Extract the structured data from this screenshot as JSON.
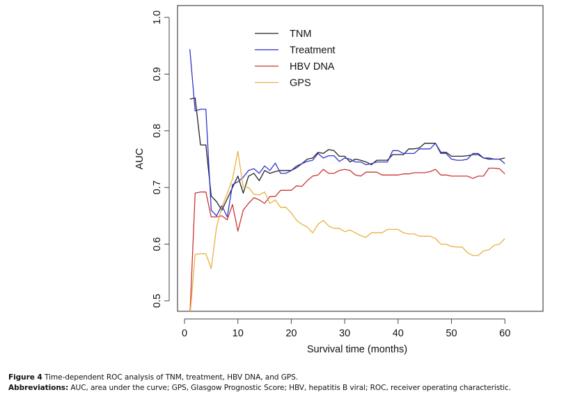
{
  "chart_data": {
    "type": "line",
    "title": "",
    "xlabel": "Survival time (months)",
    "ylabel": "AUC",
    "xlim": [
      -1.5,
      62.5
    ],
    "ylim": [
      0.478,
      1.02
    ],
    "xticks": [
      0,
      10,
      20,
      30,
      40,
      50,
      60
    ],
    "xtick_labels": [
      "0",
      "10",
      "20",
      "30",
      "40",
      "50",
      "60"
    ],
    "yticks": [
      0.5,
      0.6,
      0.7,
      0.8,
      0.9,
      1.0
    ],
    "ytick_labels": [
      "0.5",
      "0.6",
      "0.7",
      "0.8",
      "0.9",
      "1.0"
    ],
    "grid": false,
    "legend_position": "top-left",
    "x": [
      1,
      2,
      3,
      4,
      5,
      6,
      7,
      8,
      9,
      10,
      11,
      12,
      13,
      14,
      15,
      16,
      17,
      18,
      19,
      20,
      21,
      22,
      23,
      24,
      25,
      26,
      27,
      28,
      29,
      30,
      31,
      32,
      33,
      34,
      35,
      36,
      37,
      38,
      39,
      40,
      41,
      42,
      43,
      44,
      45,
      46,
      47,
      48,
      49,
      50,
      51,
      52,
      53,
      54,
      55,
      56,
      57,
      58,
      59,
      60
    ],
    "series": [
      {
        "name": "TNM",
        "color": "#222222",
        "values": [
          0.856,
          0.858,
          0.775,
          0.775,
          0.685,
          0.675,
          0.66,
          0.68,
          0.7,
          0.72,
          0.69,
          0.72,
          0.725,
          0.712,
          0.73,
          0.725,
          0.728,
          0.73,
          0.73,
          0.73,
          0.735,
          0.742,
          0.75,
          0.752,
          0.762,
          0.76,
          0.767,
          0.765,
          0.755,
          0.755,
          0.745,
          0.75,
          0.748,
          0.745,
          0.74,
          0.748,
          0.748,
          0.748,
          0.758,
          0.758,
          0.758,
          0.768,
          0.768,
          0.77,
          0.778,
          0.778,
          0.778,
          0.762,
          0.762,
          0.755,
          0.755,
          0.755,
          0.756,
          0.758,
          0.758,
          0.752,
          0.75,
          0.75,
          0.75,
          0.752
        ]
      },
      {
        "name": "Treatment",
        "color": "#3333cc",
        "values": [
          0.944,
          0.835,
          0.838,
          0.838,
          0.66,
          0.65,
          0.668,
          0.648,
          0.705,
          0.71,
          0.718,
          0.73,
          0.733,
          0.725,
          0.738,
          0.73,
          0.743,
          0.725,
          0.725,
          0.73,
          0.738,
          0.742,
          0.746,
          0.748,
          0.76,
          0.752,
          0.756,
          0.756,
          0.746,
          0.752,
          0.75,
          0.745,
          0.745,
          0.74,
          0.742,
          0.745,
          0.745,
          0.745,
          0.765,
          0.765,
          0.76,
          0.76,
          0.76,
          0.768,
          0.768,
          0.768,
          0.778,
          0.76,
          0.76,
          0.75,
          0.748,
          0.748,
          0.75,
          0.76,
          0.76,
          0.752,
          0.752,
          0.75,
          0.75,
          0.742
        ]
      },
      {
        "name": "HBV DNA",
        "color": "#cc3333",
        "values": [
          0.47,
          0.69,
          0.692,
          0.692,
          0.648,
          0.648,
          0.65,
          0.643,
          0.67,
          0.623,
          0.66,
          0.672,
          0.682,
          0.678,
          0.672,
          0.684,
          0.684,
          0.695,
          0.695,
          0.695,
          0.703,
          0.702,
          0.712,
          0.72,
          0.722,
          0.732,
          0.725,
          0.725,
          0.73,
          0.732,
          0.73,
          0.722,
          0.72,
          0.727,
          0.727,
          0.727,
          0.722,
          0.722,
          0.722,
          0.722,
          0.724,
          0.724,
          0.726,
          0.726,
          0.726,
          0.728,
          0.732,
          0.722,
          0.722,
          0.72,
          0.72,
          0.72,
          0.72,
          0.716,
          0.72,
          0.72,
          0.734,
          0.734,
          0.733,
          0.724
        ]
      },
      {
        "name": "GPS",
        "color": "#e8b040",
        "values": [
          0.47,
          0.582,
          0.583,
          0.583,
          0.557,
          0.63,
          0.665,
          0.69,
          0.715,
          0.764,
          0.7,
          0.7,
          0.688,
          0.687,
          0.692,
          0.672,
          0.678,
          0.665,
          0.665,
          0.655,
          0.642,
          0.635,
          0.63,
          0.62,
          0.635,
          0.642,
          0.632,
          0.628,
          0.628,
          0.622,
          0.625,
          0.62,
          0.615,
          0.612,
          0.62,
          0.62,
          0.62,
          0.626,
          0.626,
          0.626,
          0.62,
          0.618,
          0.618,
          0.614,
          0.614,
          0.614,
          0.61,
          0.6,
          0.6,
          0.596,
          0.595,
          0.595,
          0.585,
          0.58,
          0.58,
          0.588,
          0.59,
          0.598,
          0.6,
          0.61
        ]
      }
    ]
  },
  "caption": {
    "figure_label": "Figure 4",
    "figure_text": " Time-dependent ROC analysis of TNM, treatment, HBV DNA, and GPS.",
    "abbrev_label": "Abbreviations:",
    "abbrev_text": " AUC, area under the curve; GPS, Glasgow Prognostic Score; HBV, hepatitis B viral; ROC, receiver operating characteristic."
  }
}
